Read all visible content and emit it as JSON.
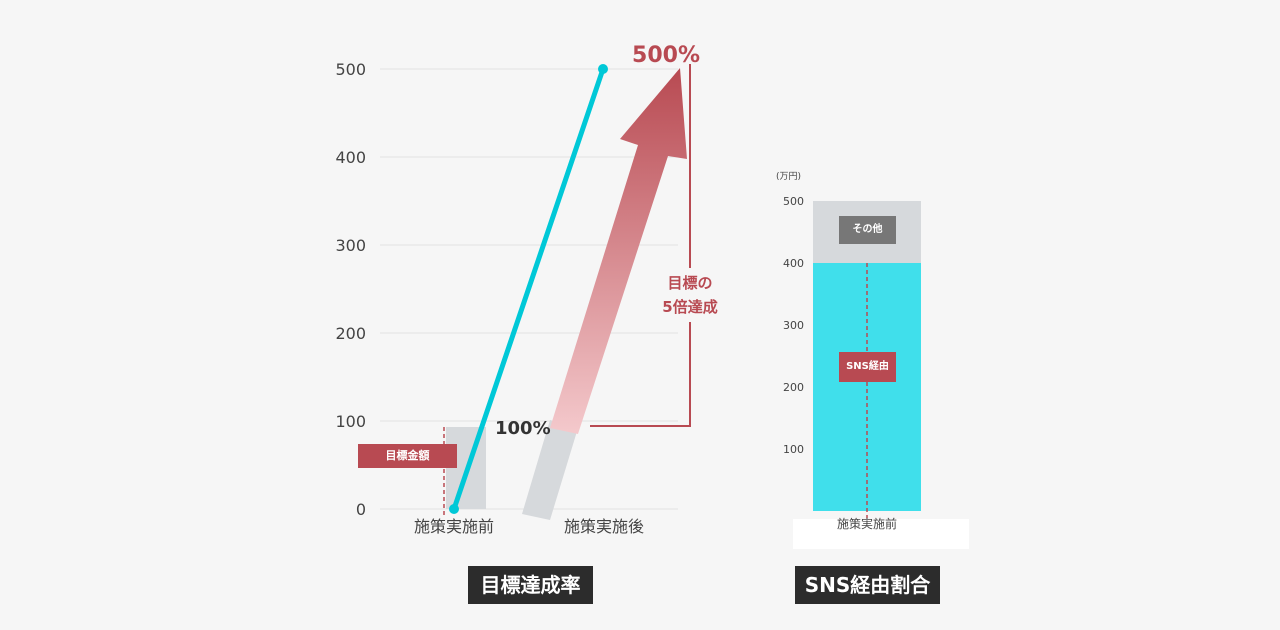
{
  "colors": {
    "accent_red": "#b84a52",
    "line_cyan": "#00c8d7",
    "bar_cyan": "#40dfeb",
    "gray_bar": "#d6d9dc",
    "label_gray": "#777777",
    "caption_bg": "#2c2c2c"
  },
  "chart_data": [
    {
      "type": "line",
      "ylim": [
        0,
        500
      ],
      "y_ticks": [
        "0",
        "100",
        "200",
        "300",
        "400",
        "500"
      ],
      "categories": [
        "施策実施前",
        "施策実施後"
      ],
      "series": [
        {
          "values": [
            0,
            500
          ]
        }
      ],
      "target_bar_value": 100,
      "annotations": {
        "target_label": "目標金額",
        "before_percent": "100%",
        "after_percent": "500%",
        "growth_line1": "目標の",
        "growth_line2": "5倍達成"
      },
      "caption": "目標達成率"
    },
    {
      "type": "bar",
      "unit": "(万円)",
      "ylim": [
        0,
        500
      ],
      "y_ticks": [
        "100",
        "200",
        "300",
        "400",
        "500"
      ],
      "categories": [
        "施策実施前"
      ],
      "stack": [
        {
          "name": "SNS経由",
          "value": 400
        },
        {
          "name": "その他",
          "value": 100
        }
      ],
      "caption": "SNS経由割合"
    }
  ]
}
